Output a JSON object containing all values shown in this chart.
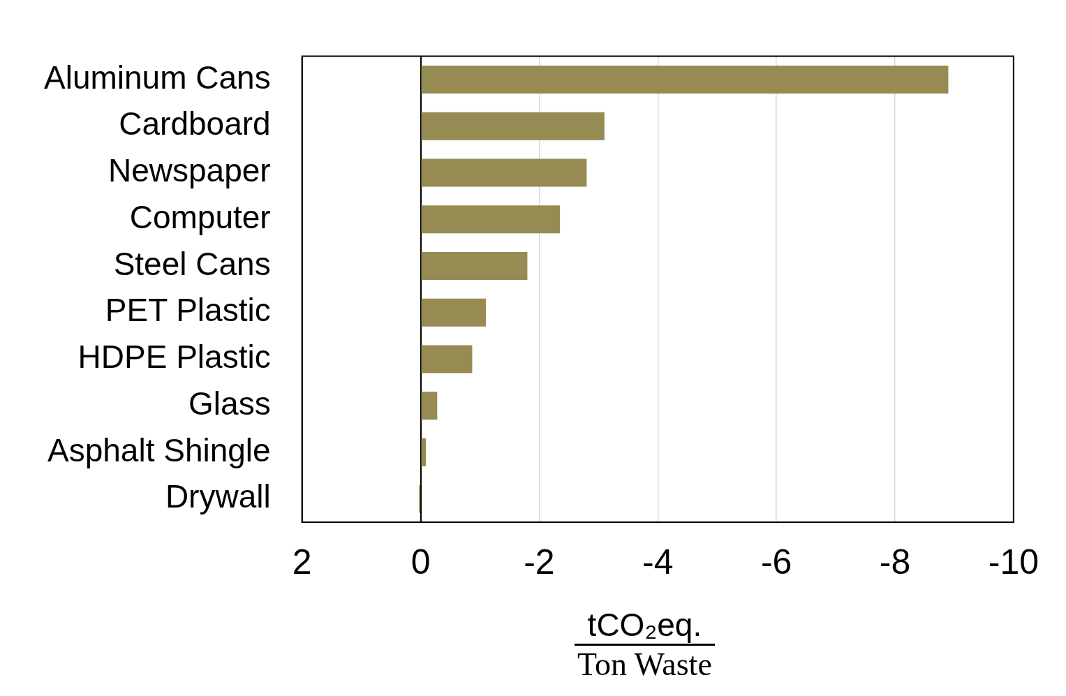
{
  "chart_data": {
    "type": "bar",
    "orientation": "horizontal",
    "categories": [
      "Aluminum Cans",
      "Cardboard",
      "Newspaper",
      "Computer",
      "Steel Cans",
      "PET Plastic",
      "HDPE Plastic",
      "Glass",
      "Asphalt Shingle",
      "Drywall"
    ],
    "values": [
      -8.9,
      -3.1,
      -2.8,
      -2.35,
      -1.8,
      -1.1,
      -0.87,
      -0.28,
      -0.09,
      0.03
    ],
    "color": "#968b53",
    "xlim": [
      2,
      -10
    ],
    "xticks": [
      2,
      0,
      -2,
      -4,
      -6,
      -8,
      -10
    ],
    "xlabel": "tCO₂eq.\nTon Waste",
    "grid": "x",
    "legend": false
  }
}
